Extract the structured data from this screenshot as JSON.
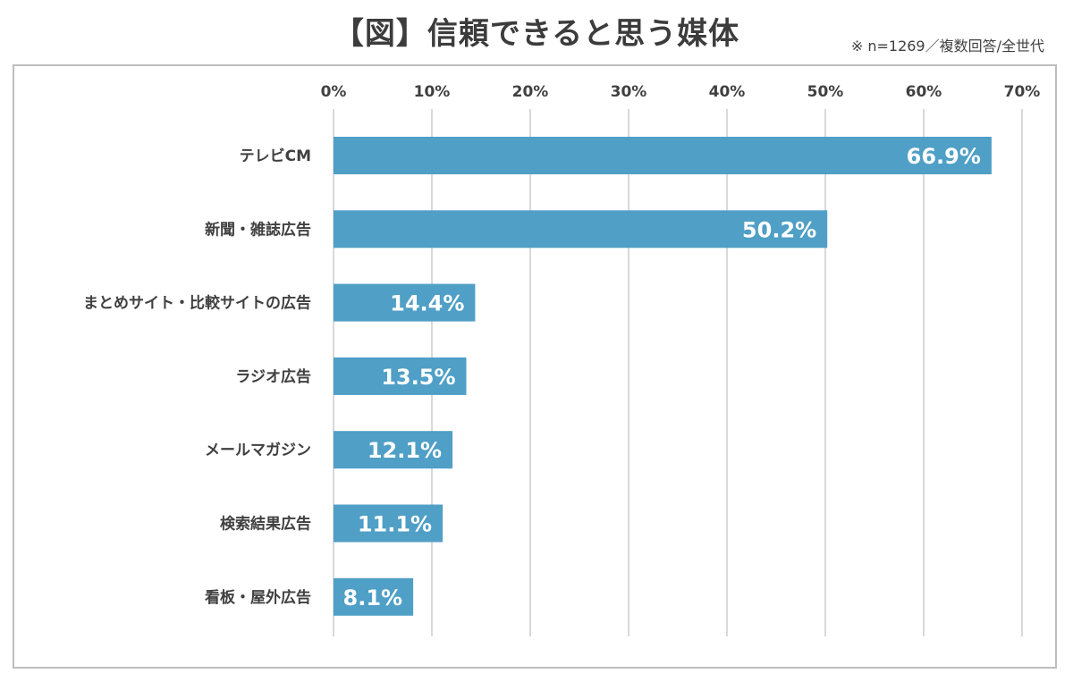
{
  "chart_data": {
    "type": "bar",
    "orientation": "horizontal",
    "title": "【図】信頼できると思う媒体",
    "note": "※ n=1269／複数回答/全世代",
    "categories": [
      "テレビCM",
      "新聞・雑誌広告",
      "まとめサイト・比較サイトの広告",
      "ラジオ広告",
      "メールマガジン",
      "検索結果広告",
      "看板・屋外広告"
    ],
    "values": [
      66.9,
      50.2,
      14.4,
      13.5,
      12.1,
      11.1,
      8.1
    ],
    "value_labels": [
      "66.9%",
      "50.2%",
      "14.4%",
      "13.5%",
      "12.1%",
      "11.1%",
      "8.1%"
    ],
    "xlim": [
      0,
      70
    ],
    "xticks": [
      0,
      10,
      20,
      30,
      40,
      50,
      60,
      70
    ],
    "xtick_labels": [
      "0%",
      "10%",
      "20%",
      "30%",
      "40%",
      "50%",
      "60%",
      "70%"
    ],
    "axis_position": "top",
    "grid": true,
    "legend": "none",
    "bar_color": "#4f9fc6",
    "grid_color": "#d9d9d9",
    "label_color": "#ffffff",
    "text_color": "#404040"
  }
}
